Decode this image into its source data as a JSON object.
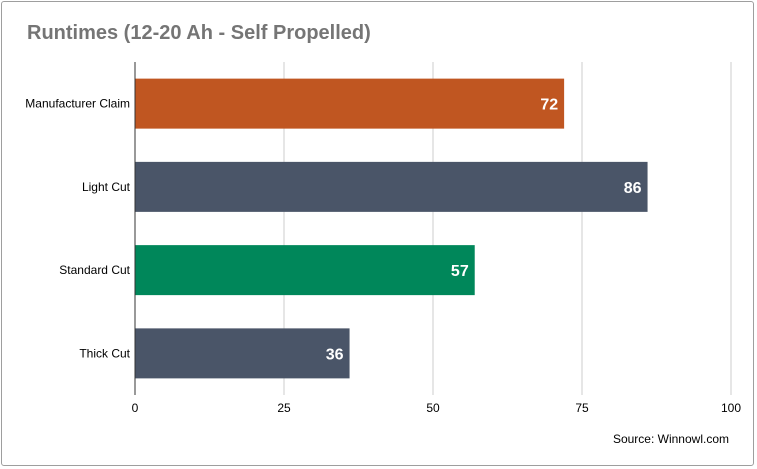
{
  "chart_data": {
    "type": "bar",
    "orientation": "horizontal",
    "title": "Runtimes (12-20 Ah - Self Propelled)",
    "source": "Source: Winnowl.com",
    "categories": [
      "Manufacturer Claim",
      "Light Cut",
      "Standard Cut",
      "Thick Cut"
    ],
    "values": [
      72,
      86,
      57,
      36
    ],
    "bar_colors": [
      "#c05621",
      "#4a5568",
      "#00875a",
      "#4a5568"
    ],
    "xlim": [
      0,
      100
    ],
    "xticks": [
      0,
      25,
      50,
      75,
      100
    ],
    "grid": true,
    "data_labels": true
  }
}
